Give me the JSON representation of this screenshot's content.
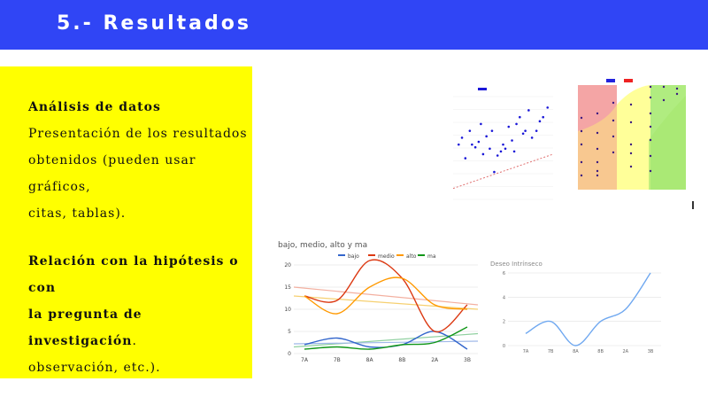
{
  "header": {
    "title": "5.- Resultados"
  },
  "panel": {
    "heading1": "Análisis de datos",
    "line1": "Presentación de los resultados",
    "line2": "obtenidos (pueden usar gráficos,",
    "line3": "citas, tablas).",
    "heading2a": "Relación con la hipótesis o con",
    "heading2b": "la pregunta de investigación",
    "heading2b_tail": ".",
    "line4": "observación, etc.)."
  },
  "chart_data": [
    {
      "type": "scatter",
      "title": "",
      "x": [
        1,
        1.3,
        1.6,
        2,
        2.2,
        2.5,
        2.8,
        3,
        3.2,
        3.5,
        3.8,
        4,
        4.2,
        4.5,
        4.8,
        5,
        5.2,
        5.5,
        5.8,
        6,
        6.2,
        6.5,
        6.8,
        7,
        7.3,
        7.6,
        8,
        8.3,
        8.6,
        9
      ],
      "y": [
        7,
        7.5,
        6,
        8,
        7,
        6.8,
        7.2,
        8.5,
        6.3,
        7.6,
        6.7,
        8,
        5,
        6.2,
        6.5,
        7,
        6.7,
        8.3,
        7.3,
        6.5,
        8.5,
        9,
        7.8,
        8,
        9.5,
        7.5,
        8,
        8.7,
        9,
        9.7
      ],
      "colors": {
        "points": "#1a17d8",
        "trend": "#e07070"
      }
    },
    {
      "type": "scatter",
      "title": "",
      "colors": {
        "red": "#f4a5a5",
        "orange": "#f8c890",
        "yellow": "#ffff99",
        "green": "#b0ec80",
        "points": "#3b1a80"
      }
    },
    {
      "type": "line",
      "title": "bajo, medio, alto y ma",
      "categories": [
        "7A",
        "7B",
        "8A",
        "8B",
        "2A",
        "3B"
      ],
      "legend": [
        "bajo",
        "medio",
        "alto",
        "ma"
      ],
      "legend_placement": "top",
      "ylim": [
        0,
        20
      ],
      "yticks": [
        "0",
        "5",
        "10",
        "15",
        "20"
      ],
      "series": [
        {
          "name": "bajo",
          "color": "#3366cc",
          "values": [
            2,
            3.5,
            1.5,
            2,
            5,
            1
          ]
        },
        {
          "name": "medio",
          "color": "#dc3912",
          "values": [
            13,
            12,
            21,
            17,
            5,
            11
          ]
        },
        {
          "name": "alto",
          "color": "#ff9900",
          "values": [
            13,
            9,
            15,
            17,
            11,
            10
          ]
        },
        {
          "name": "ma",
          "color": "#109618",
          "values": [
            1,
            1.5,
            1,
            2,
            2.5,
            6
          ]
        }
      ]
    },
    {
      "type": "line",
      "title": "Deseo Intrínseco",
      "categories": [
        "7A",
        "7B",
        "8A",
        "8B",
        "2A",
        "3B"
      ],
      "ylim": [
        0,
        6
      ],
      "yticks": [
        "0",
        "2",
        "4",
        "6"
      ],
      "series": [
        {
          "color": "#6fa8f0",
          "values": [
            1,
            2,
            0,
            2,
            3,
            6
          ]
        }
      ]
    }
  ]
}
